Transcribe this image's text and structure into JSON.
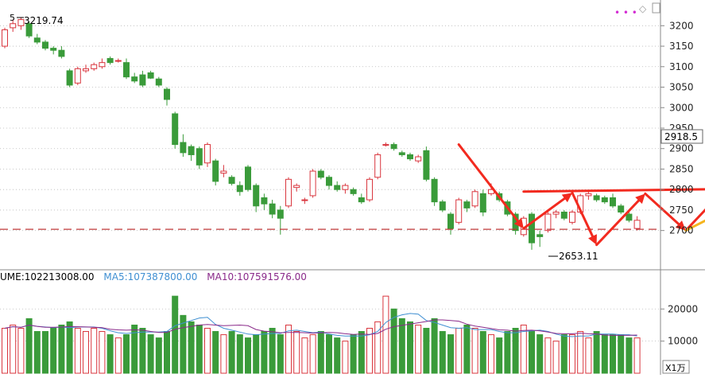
{
  "chart_data": [
    {
      "type": "candlestick",
      "ylim": [
        2610,
        3255
      ],
      "yticks": [
        2700,
        2750,
        2800,
        2850,
        2900,
        2950,
        3000,
        3050,
        3100,
        3150,
        3200
      ],
      "ohlc": [
        [
          3150,
          3195,
          3145,
          3190
        ],
        [
          3195,
          3215,
          3185,
          3205
        ],
        [
          3200,
          3220,
          3190,
          3215
        ],
        [
          3205,
          3210,
          3170,
          3175
        ],
        [
          3170,
          3180,
          3155,
          3160
        ],
        [
          3160,
          3165,
          3140,
          3145
        ],
        [
          3145,
          3150,
          3130,
          3140
        ],
        [
          3140,
          3150,
          3120,
          3125
        ],
        [
          3090,
          3095,
          3050,
          3055
        ],
        [
          3060,
          3100,
          3055,
          3095
        ],
        [
          3090,
          3105,
          3085,
          3095
        ],
        [
          3095,
          3110,
          3090,
          3105
        ],
        [
          3100,
          3120,
          3095,
          3110
        ],
        [
          3120,
          3125,
          3105,
          3110
        ],
        [
          3115,
          3120,
          3110,
          3115
        ],
        [
          3110,
          3120,
          3070,
          3075
        ],
        [
          3075,
          3085,
          3060,
          3065
        ],
        [
          3080,
          3090,
          3050,
          3055
        ],
        [
          3085,
          3090,
          3070,
          3072
        ],
        [
          3070,
          3075,
          3050,
          3055
        ],
        [
          3045,
          3050,
          3005,
          3020
        ],
        [
          2985,
          2990,
          2900,
          2910
        ],
        [
          2915,
          2935,
          2880,
          2890
        ],
        [
          2905,
          2910,
          2870,
          2885
        ],
        [
          2900,
          2905,
          2850,
          2860
        ],
        [
          2865,
          2915,
          2855,
          2910
        ],
        [
          2870,
          2875,
          2810,
          2820
        ],
        [
          2840,
          2860,
          2830,
          2845
        ],
        [
          2830,
          2835,
          2810,
          2815
        ],
        [
          2810,
          2820,
          2785,
          2795
        ],
        [
          2855,
          2860,
          2795,
          2800
        ],
        [
          2810,
          2815,
          2745,
          2760
        ],
        [
          2780,
          2790,
          2750,
          2765
        ],
        [
          2765,
          2775,
          2730,
          2740
        ],
        [
          2750,
          2760,
          2690,
          2730
        ],
        [
          2760,
          2830,
          2755,
          2825
        ],
        [
          2805,
          2815,
          2795,
          2810
        ],
        [
          2775,
          2780,
          2765,
          2775
        ],
        [
          2785,
          2850,
          2780,
          2845
        ],
        [
          2845,
          2850,
          2825,
          2830
        ],
        [
          2830,
          2835,
          2800,
          2810
        ],
        [
          2810,
          2820,
          2795,
          2800
        ],
        [
          2800,
          2815,
          2790,
          2810
        ],
        [
          2800,
          2805,
          2785,
          2790
        ],
        [
          2780,
          2790,
          2765,
          2770
        ],
        [
          2775,
          2830,
          2770,
          2825
        ],
        [
          2830,
          2890,
          2825,
          2885
        ],
        [
          2910,
          2915,
          2905,
          2910
        ],
        [
          2910,
          2915,
          2895,
          2900
        ],
        [
          2890,
          2895,
          2880,
          2885
        ],
        [
          2885,
          2890,
          2870,
          2875
        ],
        [
          2870,
          2885,
          2865,
          2880
        ],
        [
          2895,
          2905,
          2820,
          2825
        ],
        [
          2825,
          2830,
          2760,
          2770
        ],
        [
          2770,
          2775,
          2745,
          2750
        ],
        [
          2740,
          2745,
          2690,
          2705
        ],
        [
          2720,
          2780,
          2715,
          2775
        ],
        [
          2770,
          2775,
          2745,
          2755
        ],
        [
          2760,
          2800,
          2755,
          2795
        ],
        [
          2790,
          2800,
          2735,
          2745
        ],
        [
          2790,
          2815,
          2785,
          2800
        ],
        [
          2790,
          2795,
          2770,
          2775
        ],
        [
          2770,
          2775,
          2735,
          2740
        ],
        [
          2740,
          2745,
          2690,
          2700
        ],
        [
          2690,
          2735,
          2685,
          2730
        ],
        [
          2740,
          2745,
          2653,
          2670
        ],
        [
          2690,
          2700,
          2660,
          2685
        ],
        [
          2700,
          2745,
          2695,
          2740
        ],
        [
          2740,
          2750,
          2730,
          2745
        ],
        [
          2745,
          2750,
          2725,
          2730
        ],
        [
          2720,
          2750,
          2715,
          2745
        ],
        [
          2745,
          2790,
          2740,
          2785
        ],
        [
          2785,
          2795,
          2775,
          2790
        ],
        [
          2785,
          2790,
          2770,
          2775
        ],
        [
          2780,
          2785,
          2765,
          2770
        ],
        [
          2780,
          2790,
          2755,
          2760
        ],
        [
          2760,
          2765,
          2740,
          2745
        ],
        [
          2740,
          2745,
          2720,
          2725
        ],
        [
          2705,
          2735,
          2700,
          2725
        ]
      ],
      "volume": [
        14,
        15,
        14,
        17,
        13,
        13,
        14,
        15,
        16,
        14,
        13,
        14,
        13,
        12,
        11,
        12,
        15,
        14,
        12,
        11,
        13,
        24,
        18,
        16,
        15,
        14,
        13,
        12,
        13,
        12,
        11,
        12,
        13,
        14,
        12,
        15,
        13,
        11,
        12,
        13,
        12,
        11,
        10,
        12,
        13,
        14,
        16,
        24,
        20,
        17,
        16,
        15,
        14,
        17,
        13,
        12,
        14,
        15,
        14,
        13,
        12,
        11,
        13,
        14,
        15,
        13,
        12,
        11,
        10,
        12,
        12,
        13,
        11,
        13,
        12,
        12,
        12,
        11,
        11
      ],
      "high_label": "3219.74",
      "low_label": "2653.11",
      "price_tag": "2918.5",
      "hline_price": 2703,
      "resistance_line": [
        [
          64,
          2795
        ],
        [
          92,
          2802
        ]
      ],
      "red_arrows": [
        [
          [
            56,
            2910
          ],
          [
            64,
            2705
          ]
        ],
        [
          [
            64,
            2705
          ],
          [
            70,
            2792
          ]
        ],
        [
          [
            70,
            2792
          ],
          [
            73,
            2665
          ]
        ],
        [
          [
            73,
            2665
          ],
          [
            79,
            2790
          ]
        ],
        [
          [
            79,
            2790
          ],
          [
            84,
            2700
          ]
        ],
        [
          [
            84,
            2700
          ],
          [
            89,
            2805
          ]
        ]
      ],
      "orange_arrows": [
        [
          [
            84,
            2700
          ],
          [
            89,
            2750
          ]
        ],
        [
          [
            89,
            2750
          ],
          [
            93,
            2670
          ]
        ]
      ]
    },
    {
      "type": "bar",
      "series": [
        {
          "name": "VOLUME",
          "value": "102213008.00"
        },
        {
          "name": "MA5",
          "value": "107387800.00"
        },
        {
          "name": "MA10",
          "value": "107591576.00"
        }
      ],
      "ylim": [
        0,
        28
      ],
      "yticks": [
        10000,
        20000
      ],
      "unit": "X1万"
    }
  ],
  "legend": {
    "vol_label": "UME:",
    "ma5_label": "MA5:",
    "ma10_label": "MA10:"
  },
  "marker_5": "5",
  "colors": {
    "up": "#d9363e",
    "down": "#3a9b3a",
    "arrow": "#f22a1f",
    "orange": "#f5b41e",
    "ma5": "#3f8fd2",
    "ma10": "#8a2a8a",
    "grid": "#b8b8b8",
    "dash": "#c0383a"
  }
}
